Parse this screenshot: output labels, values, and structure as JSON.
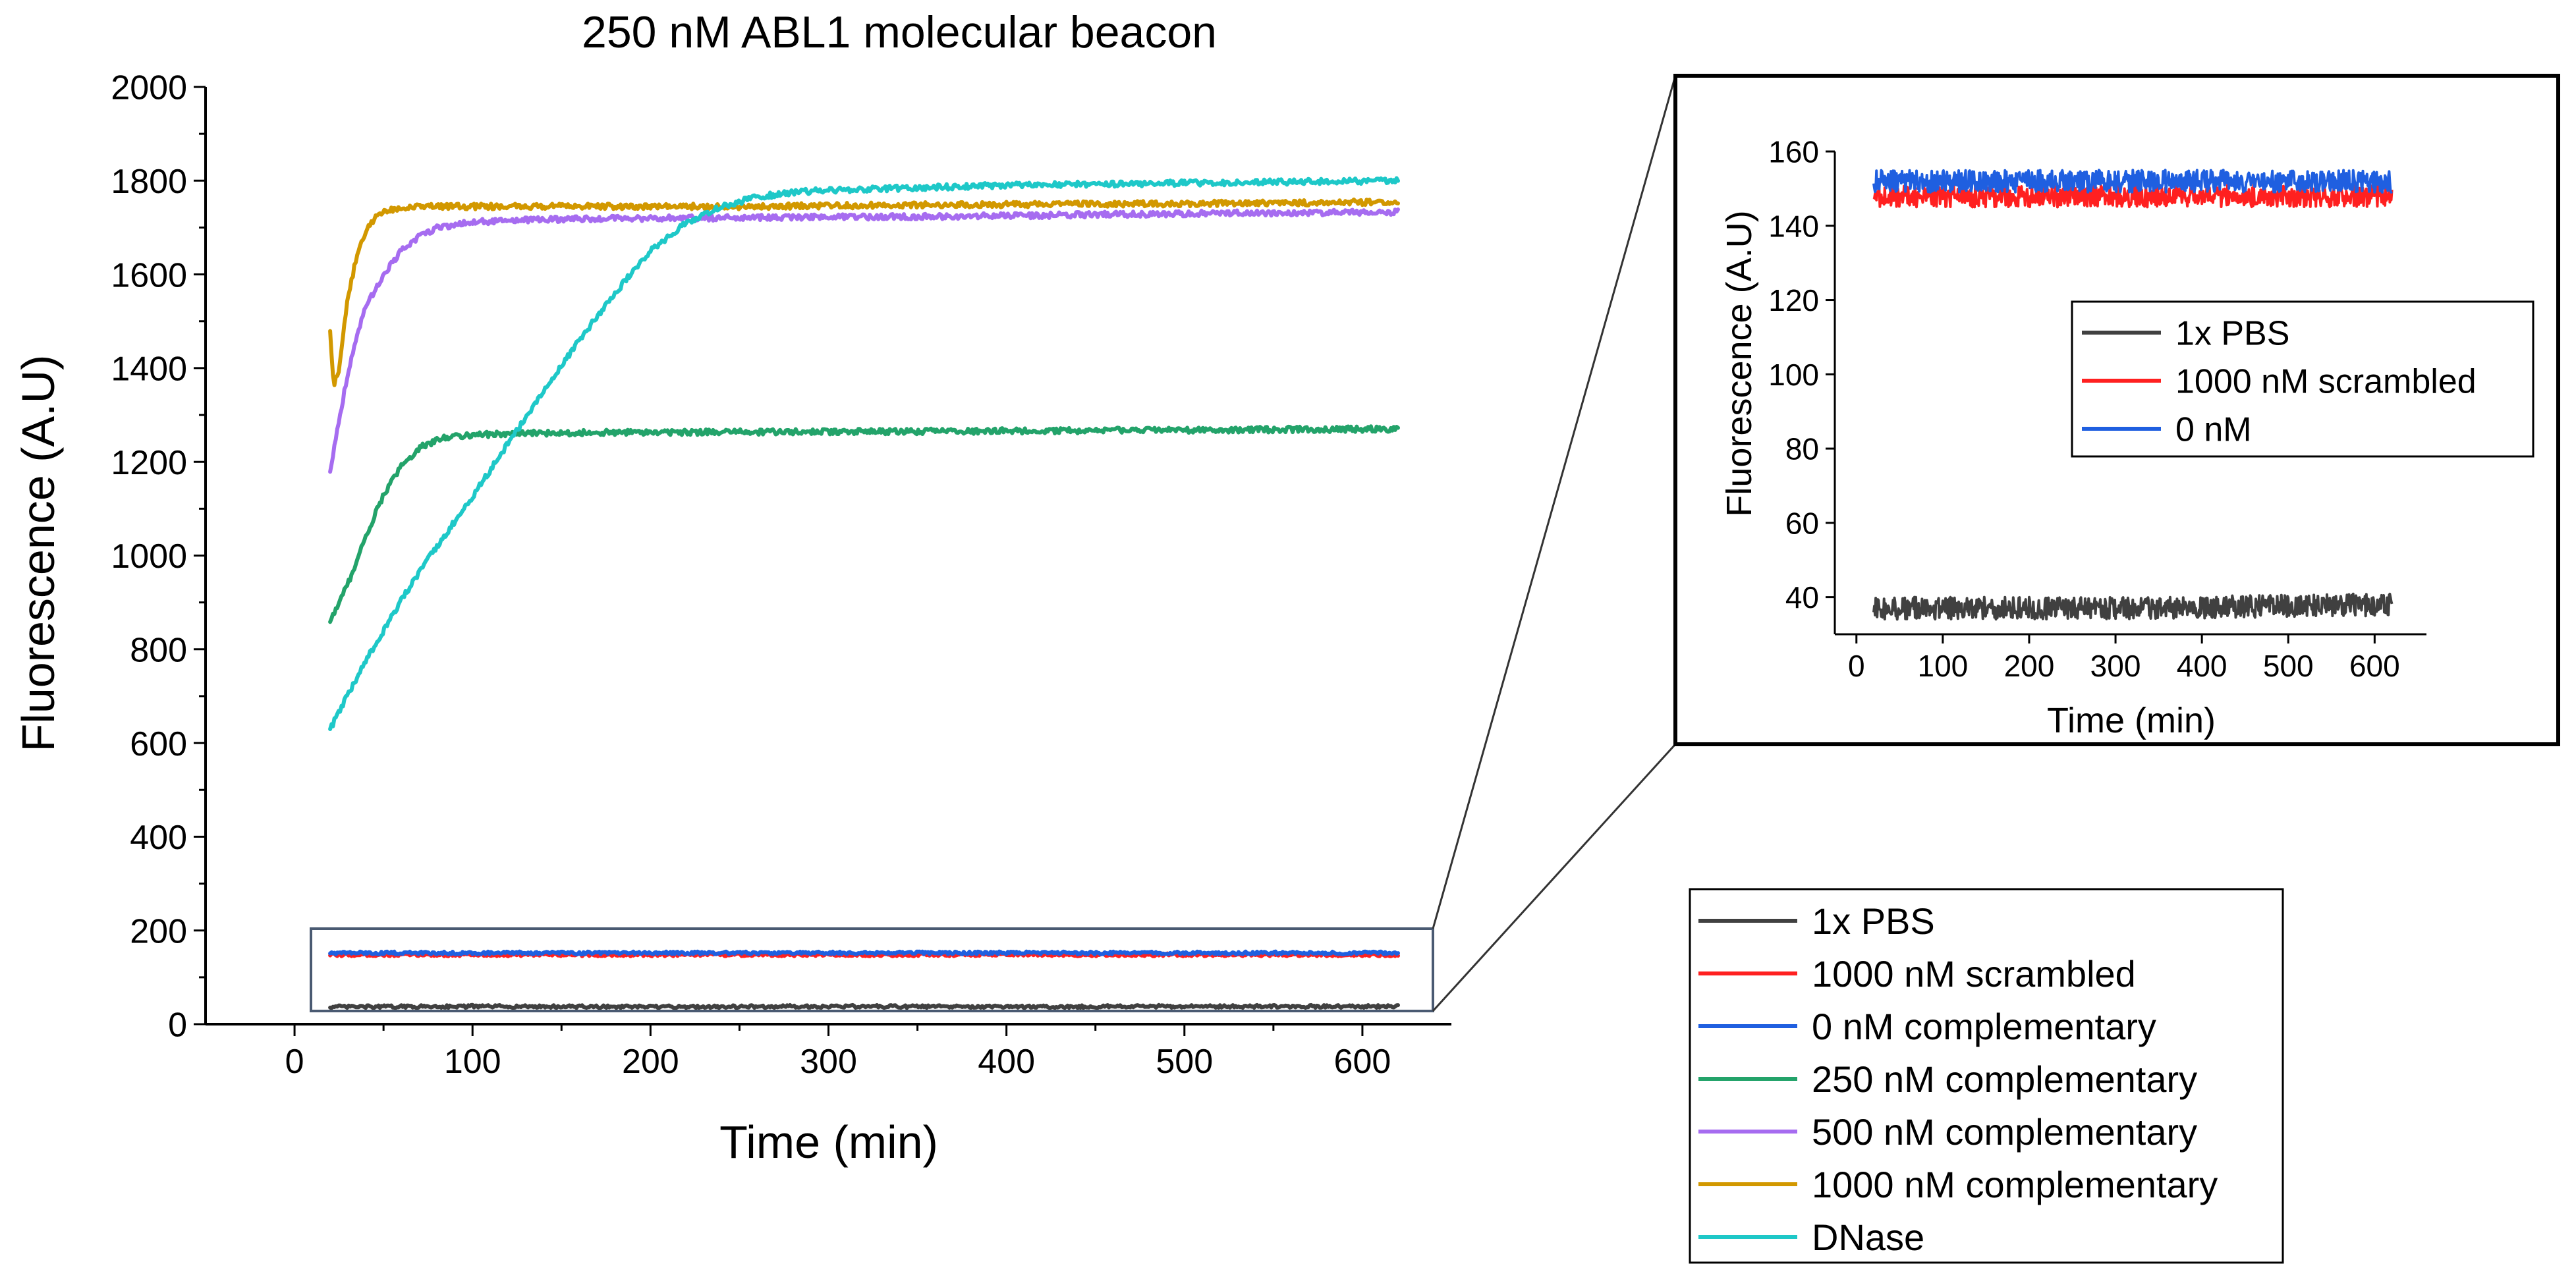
{
  "chart_data": [
    {
      "id": "main",
      "type": "line",
      "title": "250 nM ABL1 molecular beacon",
      "xlabel": "Time (min)",
      "ylabel": "Fluorescence (A.U)",
      "xlim": [
        -50,
        650
      ],
      "ylim": [
        0,
        2000
      ],
      "xticks": [
        0,
        100,
        200,
        300,
        400,
        500,
        600
      ],
      "yticks": [
        0,
        200,
        400,
        600,
        800,
        1000,
        1200,
        1400,
        1600,
        1800,
        2000
      ],
      "x_range": [
        20,
        620
      ],
      "series": [
        {
          "name": "1x PBS",
          "color": "#404040",
          "points": [
            [
              20,
              37
            ],
            [
              100,
              38
            ],
            [
              200,
              37
            ],
            [
              300,
              38
            ],
            [
              400,
              37
            ],
            [
              500,
              38
            ],
            [
              620,
              38
            ]
          ],
          "noise": 3
        },
        {
          "name": "1000 nM scrambled",
          "color": "#ff2020",
          "points": [
            [
              20,
              148
            ],
            [
              100,
              148
            ],
            [
              200,
              148
            ],
            [
              300,
              148
            ],
            [
              400,
              148
            ],
            [
              500,
              148
            ],
            [
              620,
              148
            ]
          ],
          "noise": 3
        },
        {
          "name": "0 nM complementary",
          "color": "#1f5fe0",
          "points": [
            [
              20,
              152
            ],
            [
              100,
              152
            ],
            [
              200,
              152
            ],
            [
              300,
              152
            ],
            [
              400,
              152
            ],
            [
              500,
              152
            ],
            [
              620,
              152
            ]
          ],
          "noise": 3
        },
        {
          "name": "250 nM complementary",
          "color": "#23a36a",
          "points": [
            [
              20,
              860
            ],
            [
              30,
              940
            ],
            [
              40,
              1040
            ],
            [
              50,
              1130
            ],
            [
              60,
              1190
            ],
            [
              70,
              1230
            ],
            [
              85,
              1253
            ],
            [
              100,
              1258
            ],
            [
              150,
              1262
            ],
            [
              200,
              1263
            ],
            [
              300,
              1264
            ],
            [
              400,
              1266
            ],
            [
              500,
              1268
            ],
            [
              620,
              1270
            ]
          ],
          "noise": 6
        },
        {
          "name": "500 nM complementary",
          "color": "#a66cf0",
          "points": [
            [
              20,
              1180
            ],
            [
              25,
              1290
            ],
            [
              30,
              1390
            ],
            [
              35,
              1470
            ],
            [
              40,
              1530
            ],
            [
              50,
              1600
            ],
            [
              60,
              1650
            ],
            [
              70,
              1680
            ],
            [
              80,
              1700
            ],
            [
              100,
              1712
            ],
            [
              150,
              1718
            ],
            [
              200,
              1720
            ],
            [
              300,
              1722
            ],
            [
              400,
              1725
            ],
            [
              500,
              1730
            ],
            [
              620,
              1733
            ]
          ],
          "noise": 6
        },
        {
          "name": "1000 nM complementary",
          "color": "#d29800",
          "points": [
            [
              20,
              1480
            ],
            [
              22,
              1360
            ],
            [
              25,
              1400
            ],
            [
              30,
              1550
            ],
            [
              35,
              1640
            ],
            [
              40,
              1690
            ],
            [
              45,
              1720
            ],
            [
              50,
              1735
            ],
            [
              60,
              1742
            ],
            [
              80,
              1745
            ],
            [
              150,
              1745
            ],
            [
              250,
              1745
            ],
            [
              350,
              1748
            ],
            [
              450,
              1750
            ],
            [
              550,
              1752
            ],
            [
              620,
              1755
            ]
          ],
          "noise": 6
        },
        {
          "name": "DNase",
          "color": "#1ec8c8",
          "points": [
            [
              20,
              630
            ],
            [
              40,
              775
            ],
            [
              60,
              905
            ],
            [
              80,
              1020
            ],
            [
              100,
              1125
            ],
            [
              120,
              1240
            ],
            [
              140,
              1350
            ],
            [
              160,
              1460
            ],
            [
              180,
              1560
            ],
            [
              200,
              1650
            ],
            [
              220,
              1710
            ],
            [
              240,
              1745
            ],
            [
              260,
              1765
            ],
            [
              280,
              1775
            ],
            [
              300,
              1780
            ],
            [
              350,
              1785
            ],
            [
              400,
              1790
            ],
            [
              500,
              1795
            ],
            [
              620,
              1800
            ]
          ],
          "noise": 6
        }
      ],
      "zoom_region": {
        "x": [
          10,
          640
        ],
        "y": [
          0,
          200
        ]
      }
    },
    {
      "id": "inset",
      "type": "line",
      "title": "",
      "xlabel": "Time (min)",
      "ylabel": "Fluorescence (A.U)",
      "xlim": [
        -25,
        660
      ],
      "ylim": [
        30,
        160
      ],
      "xticks": [
        0,
        100,
        200,
        300,
        400,
        500,
        600
      ],
      "yticks": [
        40,
        60,
        80,
        100,
        120,
        140,
        160
      ],
      "x_range": [
        20,
        620
      ],
      "series": [
        {
          "name": "1x PBS",
          "color": "#404040",
          "points": [
            [
              20,
              37
            ],
            [
              300,
              37
            ],
            [
              620,
              38
            ]
          ],
          "noise": 3
        },
        {
          "name": "1000 nM scrambled",
          "color": "#ff2020",
          "points": [
            [
              20,
              148
            ],
            [
              300,
              148
            ],
            [
              620,
              148
            ]
          ],
          "noise": 3
        },
        {
          "name": "0 nM",
          "color": "#1f5fe0",
          "points": [
            [
              20,
              152
            ],
            [
              300,
              152
            ],
            [
              620,
              152
            ]
          ],
          "noise": 3
        }
      ]
    }
  ]
}
